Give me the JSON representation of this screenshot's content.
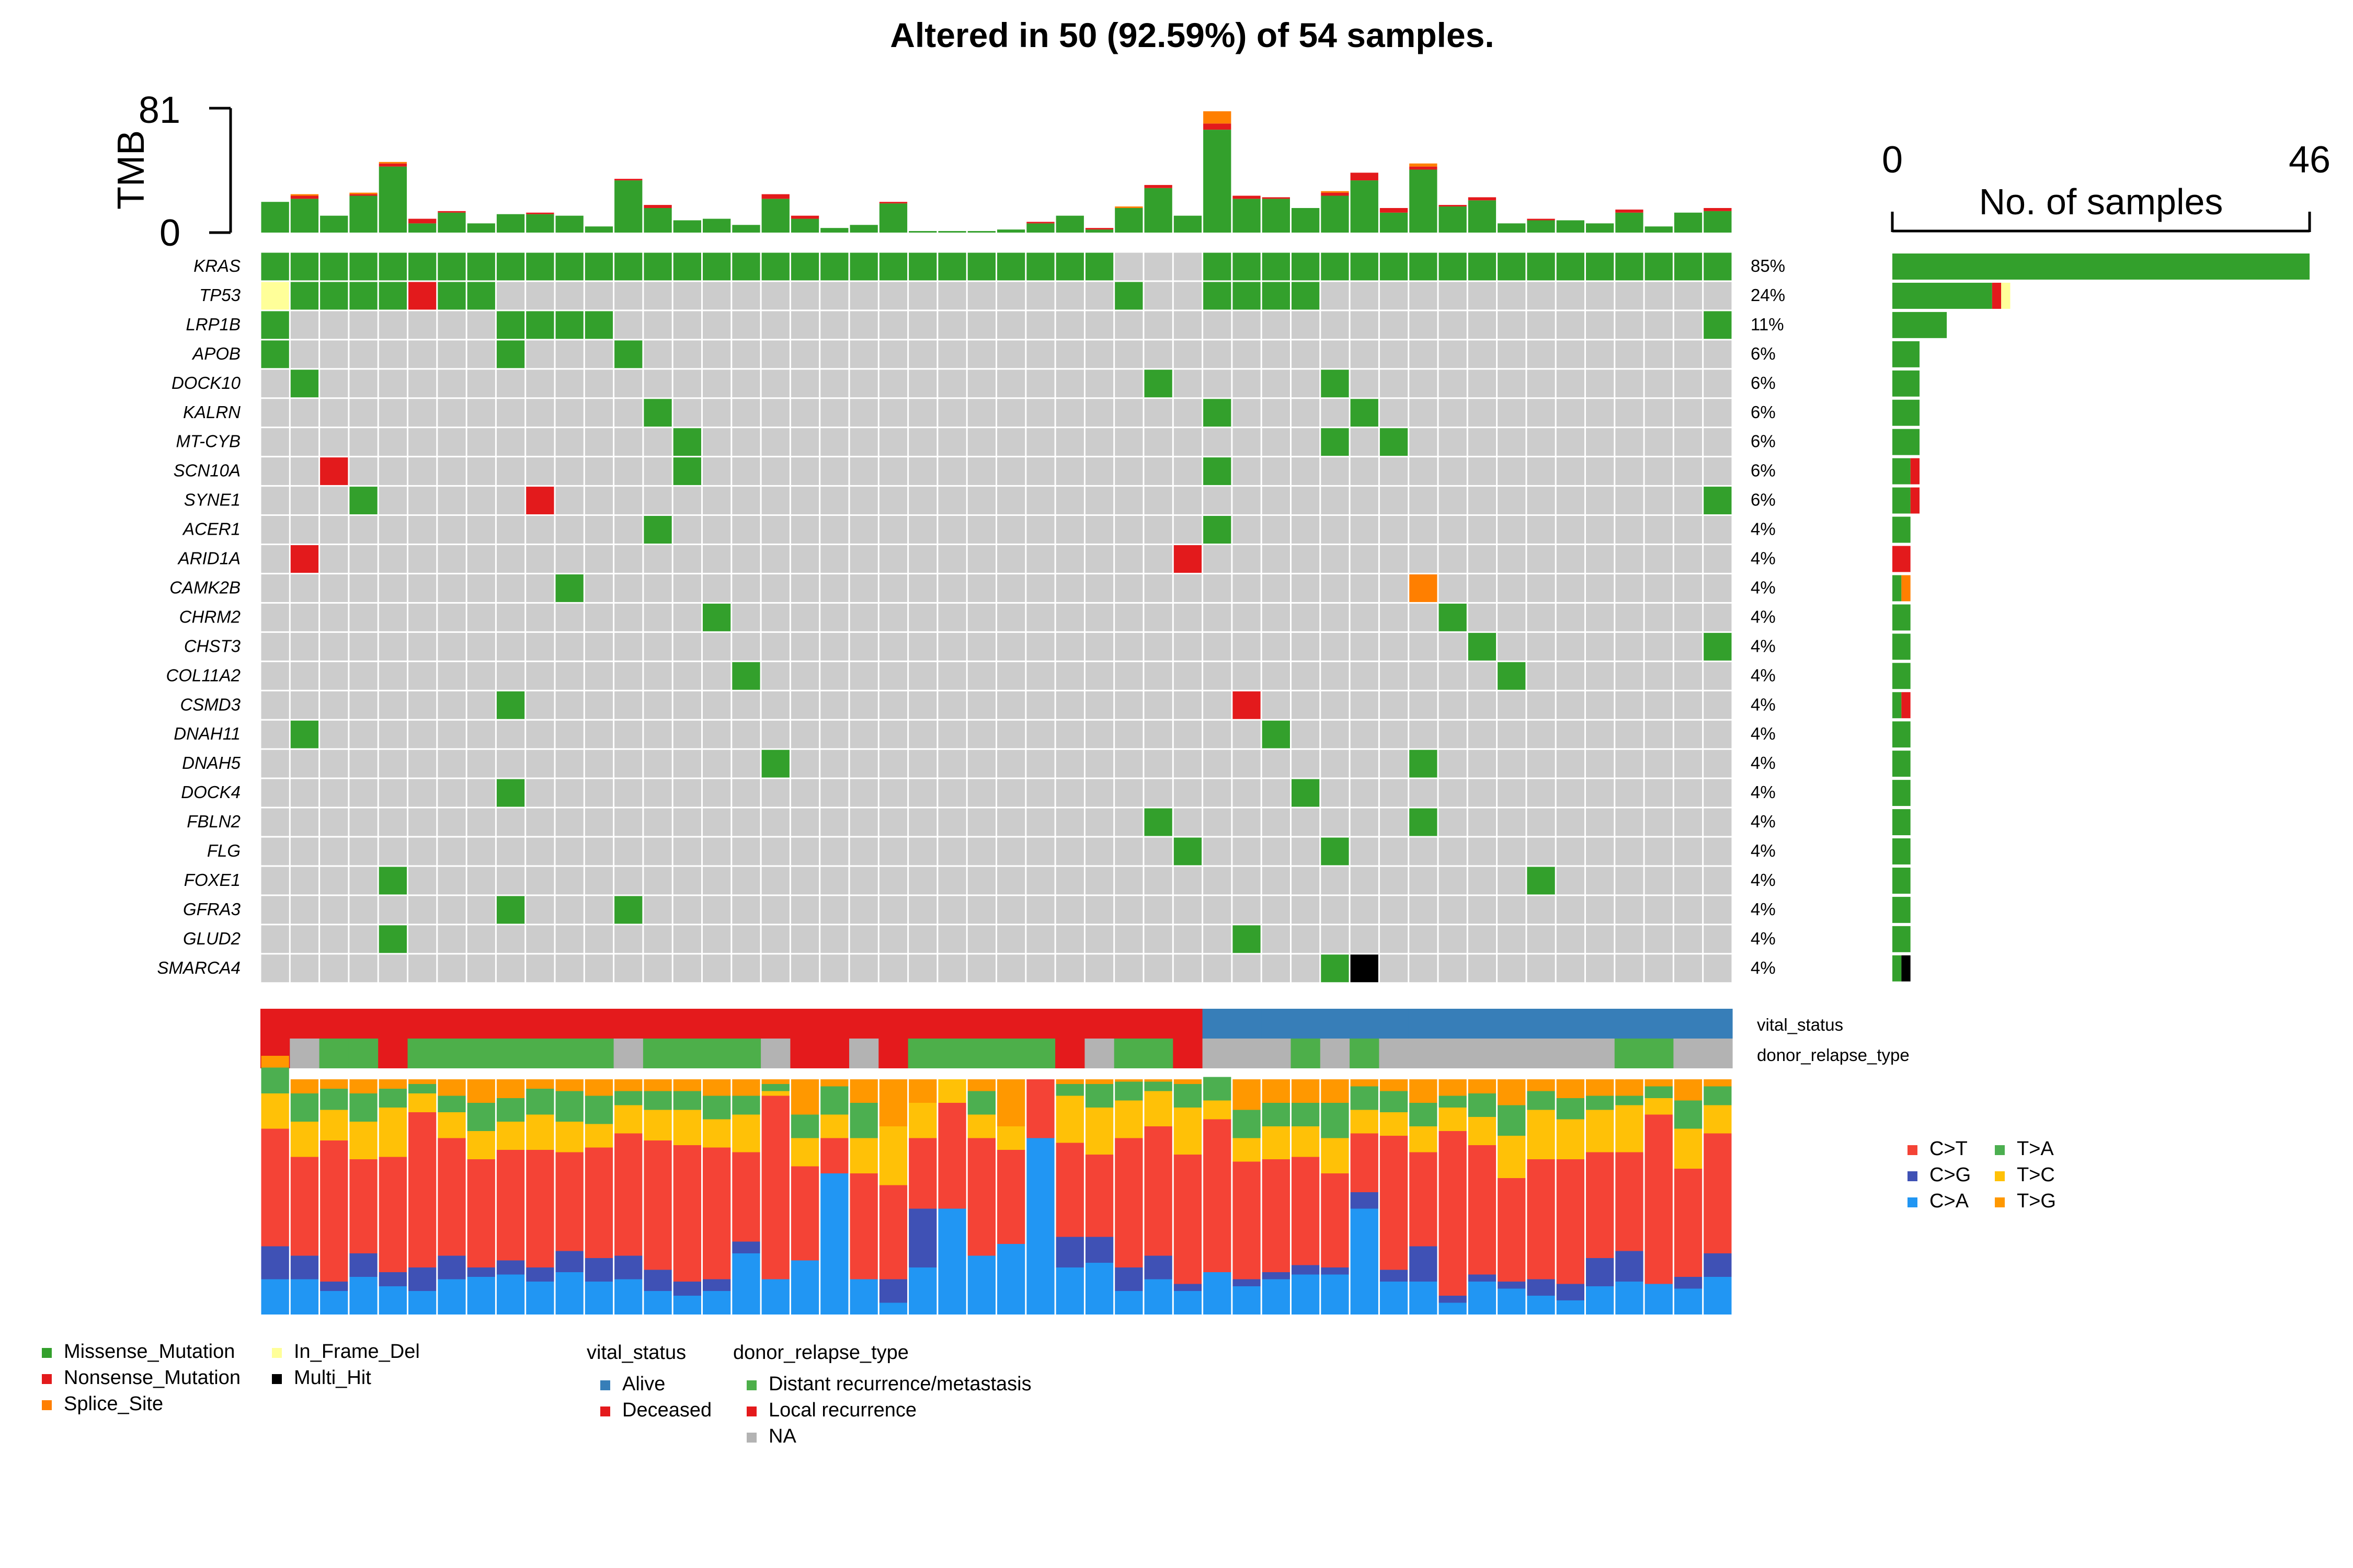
{
  "chart_data": {
    "type": "heatmap",
    "title": "Altered in 50 (92.59%) of 54 samples.",
    "n_samples": 54,
    "colors": {
      "Missense_Mutation": "#33a02c",
      "Nonsense_Mutation": "#e31a1c",
      "Splice_Site": "#ff7f00",
      "In_Frame_Del": "#ffff99",
      "Multi_Hit": "#000000",
      "none": "#cccccc",
      "Alive": "#377eb8",
      "Deceased": "#e41a1c",
      "Distant recurrence/metastasis": "#4daf4a",
      "Local recurrence": "#e41a1c",
      "NA": "#b3b3b3",
      "C>T": "#f44336",
      "C>G": "#3f51b5",
      "C>A": "#2196f3",
      "T>A": "#4caf50",
      "T>C": "#ffc107",
      "T>G": "#ff9800"
    },
    "tmb": {
      "label": "TMB",
      "max_label": "81",
      "min_label": "0",
      "max": 81,
      "values": [
        {
          "Missense_Mutation": 20
        },
        {
          "Missense_Mutation": 22,
          "Nonsense_Mutation": 2,
          "Splice_Site": 1
        },
        {
          "Missense_Mutation": 11
        },
        {
          "Missense_Mutation": 24,
          "Nonsense_Mutation": 1,
          "Splice_Site": 1
        },
        {
          "Missense_Mutation": 43,
          "Nonsense_Mutation": 2,
          "Splice_Site": 1
        },
        {
          "Missense_Mutation": 6,
          "Nonsense_Mutation": 3
        },
        {
          "Missense_Mutation": 13,
          "Nonsense_Mutation": 1
        },
        {
          "Missense_Mutation": 6
        },
        {
          "Missense_Mutation": 12
        },
        {
          "Missense_Mutation": 12,
          "Nonsense_Mutation": 1
        },
        {
          "Missense_Mutation": 11
        },
        {
          "Missense_Mutation": 4
        },
        {
          "Missense_Mutation": 34,
          "Nonsense_Mutation": 1
        },
        {
          "Missense_Mutation": 16,
          "Nonsense_Mutation": 2
        },
        {
          "Missense_Mutation": 8
        },
        {
          "Missense_Mutation": 9
        },
        {
          "Missense_Mutation": 5
        },
        {
          "Missense_Mutation": 22,
          "Nonsense_Mutation": 3
        },
        {
          "Missense_Mutation": 9,
          "Nonsense_Mutation": 2
        },
        {
          "Missense_Mutation": 3
        },
        {
          "Missense_Mutation": 5
        },
        {
          "Missense_Mutation": 19,
          "Nonsense_Mutation": 1
        },
        {
          "Missense_Mutation": 1
        },
        {
          "Missense_Mutation": 1
        },
        {
          "Missense_Mutation": 1
        },
        {
          "Missense_Mutation": 2
        },
        {
          "Missense_Mutation": 6,
          "Nonsense_Mutation": 1
        },
        {
          "Missense_Mutation": 11
        },
        {
          "Missense_Mutation": 2,
          "Nonsense_Mutation": 1
        },
        {
          "Missense_Mutation": 16,
          "Splice_Site": 1
        },
        {
          "Missense_Mutation": 29,
          "Nonsense_Mutation": 2
        },
        {
          "Missense_Mutation": 11
        },
        {
          "Missense_Mutation": 67,
          "Nonsense_Mutation": 4,
          "Splice_Site": 8
        },
        {
          "Missense_Mutation": 22,
          "Nonsense_Mutation": 2
        },
        {
          "Missense_Mutation": 22,
          "Nonsense_Mutation": 1
        },
        {
          "Missense_Mutation": 16
        },
        {
          "Missense_Mutation": 24,
          "Nonsense_Mutation": 2,
          "Splice_Site": 1
        },
        {
          "Missense_Mutation": 34,
          "Nonsense_Mutation": 5
        },
        {
          "Missense_Mutation": 13,
          "Nonsense_Mutation": 3
        },
        {
          "Missense_Mutation": 41,
          "Nonsense_Mutation": 2,
          "Splice_Site": 2
        },
        {
          "Missense_Mutation": 17,
          "Nonsense_Mutation": 1
        },
        {
          "Missense_Mutation": 21,
          "Nonsense_Mutation": 2
        },
        {
          "Missense_Mutation": 6
        },
        {
          "Missense_Mutation": 8,
          "Nonsense_Mutation": 1
        },
        {
          "Missense_Mutation": 8
        },
        {
          "Missense_Mutation": 6
        },
        {
          "Missense_Mutation": 13,
          "Nonsense_Mutation": 2
        },
        {
          "Missense_Mutation": 4
        },
        {
          "Missense_Mutation": 13
        },
        {
          "Missense_Mutation": 14,
          "Nonsense_Mutation": 2
        }
      ]
    },
    "genes": [
      {
        "name": "KRAS",
        "pct": "85%",
        "cols": [
          0,
          1,
          2,
          3,
          4,
          5,
          6,
          7,
          8,
          9,
          10,
          11,
          12,
          13,
          14,
          15,
          16,
          17,
          18,
          19,
          20,
          21,
          22,
          23,
          24,
          25,
          26,
          27,
          28,
          32,
          33,
          34,
          35,
          36,
          37,
          38,
          39,
          40,
          41,
          42,
          43,
          44,
          45,
          46,
          47,
          48,
          49
        ],
        "types": {}
      },
      {
        "name": "TP53",
        "pct": "24%",
        "cols": [
          0,
          1,
          2,
          3,
          4,
          5,
          6,
          7,
          29,
          32,
          33,
          34,
          35
        ],
        "types": {
          "0": "In_Frame_Del",
          "5": "Nonsense_Mutation"
        }
      },
      {
        "name": "LRP1B",
        "pct": "11%",
        "cols": [
          0,
          8,
          9,
          10,
          11,
          49
        ],
        "types": {}
      },
      {
        "name": "APOB",
        "pct": "6%",
        "cols": [
          0,
          8,
          12
        ],
        "types": {}
      },
      {
        "name": "DOCK10",
        "pct": "6%",
        "cols": [
          1,
          30,
          36
        ],
        "types": {}
      },
      {
        "name": "KALRN",
        "pct": "6%",
        "cols": [
          13,
          32,
          37
        ],
        "types": {}
      },
      {
        "name": "MT-CYB",
        "pct": "6%",
        "cols": [
          14,
          36,
          38
        ],
        "types": {}
      },
      {
        "name": "SCN10A",
        "pct": "6%",
        "cols": [
          2,
          14,
          32
        ],
        "types": {
          "2": "Nonsense_Mutation"
        }
      },
      {
        "name": "SYNE1",
        "pct": "6%",
        "cols": [
          3,
          9,
          49
        ],
        "types": {
          "9": "Nonsense_Mutation"
        }
      },
      {
        "name": "ACER1",
        "pct": "4%",
        "cols": [
          13,
          32
        ],
        "types": {}
      },
      {
        "name": "ARID1A",
        "pct": "4%",
        "cols": [
          1,
          31
        ],
        "types": {
          "1": "Nonsense_Mutation",
          "31": "Nonsense_Mutation"
        }
      },
      {
        "name": "CAMK2B",
        "pct": "4%",
        "cols": [
          10,
          39
        ],
        "types": {
          "39": "Splice_Site"
        }
      },
      {
        "name": "CHRM2",
        "pct": "4%",
        "cols": [
          15,
          40
        ],
        "types": {}
      },
      {
        "name": "CHST3",
        "pct": "4%",
        "cols": [
          41,
          49
        ],
        "types": {}
      },
      {
        "name": "COL11A2",
        "pct": "4%",
        "cols": [
          16,
          42
        ],
        "types": {}
      },
      {
        "name": "CSMD3",
        "pct": "4%",
        "cols": [
          8,
          33
        ],
        "types": {
          "33": "Nonsense_Mutation"
        }
      },
      {
        "name": "DNAH11",
        "pct": "4%",
        "cols": [
          1,
          34
        ],
        "types": {}
      },
      {
        "name": "DNAH5",
        "pct": "4%",
        "cols": [
          17,
          39
        ],
        "types": {}
      },
      {
        "name": "DOCK4",
        "pct": "4%",
        "cols": [
          8,
          35
        ],
        "types": {}
      },
      {
        "name": "FBLN2",
        "pct": "4%",
        "cols": [
          30,
          39
        ],
        "types": {}
      },
      {
        "name": "FLG",
        "pct": "4%",
        "cols": [
          31,
          36
        ],
        "types": {}
      },
      {
        "name": "FOXE1",
        "pct": "4%",
        "cols": [
          4,
          43
        ],
        "types": {}
      },
      {
        "name": "GFRA3",
        "pct": "4%",
        "cols": [
          8,
          12
        ],
        "types": {}
      },
      {
        "name": "GLUD2",
        "pct": "4%",
        "cols": [
          4,
          33
        ],
        "types": {}
      },
      {
        "name": "SMARCA4",
        "pct": "4%",
        "cols": [
          36,
          37
        ],
        "types": {
          "37": "Multi_Hit"
        }
      }
    ],
    "gene_bars": {
      "axis_title": "No. of samples",
      "min_label": "0",
      "max_label": "46",
      "max": 46,
      "values": [
        {
          "Missense_Mutation": 46
        },
        {
          "Missense_Mutation": 11,
          "Nonsense_Mutation": 1,
          "In_Frame_Del": 1
        },
        {
          "Missense_Mutation": 6
        },
        {
          "Missense_Mutation": 3
        },
        {
          "Missense_Mutation": 3
        },
        {
          "Missense_Mutation": 3
        },
        {
          "Missense_Mutation": 3
        },
        {
          "Missense_Mutation": 2,
          "Nonsense_Mutation": 1
        },
        {
          "Missense_Mutation": 2,
          "Nonsense_Mutation": 1
        },
        {
          "Missense_Mutation": 2
        },
        {
          "Nonsense_Mutation": 2
        },
        {
          "Missense_Mutation": 1,
          "Splice_Site": 1
        },
        {
          "Missense_Mutation": 2
        },
        {
          "Missense_Mutation": 2
        },
        {
          "Missense_Mutation": 2
        },
        {
          "Missense_Mutation": 1,
          "Nonsense_Mutation": 1
        },
        {
          "Missense_Mutation": 2
        },
        {
          "Missense_Mutation": 2
        },
        {
          "Missense_Mutation": 2
        },
        {
          "Missense_Mutation": 2
        },
        {
          "Missense_Mutation": 2
        },
        {
          "Missense_Mutation": 2
        },
        {
          "Missense_Mutation": 2
        },
        {
          "Missense_Mutation": 2
        },
        {
          "Missense_Mutation": 1,
          "Multi_Hit": 1
        }
      ]
    },
    "annotations": {
      "vital_status": {
        "label": "vital_status",
        "values": [
          "Deceased",
          "Deceased",
          "Deceased",
          "Deceased",
          "Deceased",
          "Deceased",
          "Deceased",
          "Deceased",
          "Deceased",
          "Deceased",
          "Deceased",
          "Deceased",
          "Deceased",
          "Deceased",
          "Deceased",
          "Deceased",
          "Deceased",
          "Deceased",
          "Deceased",
          "Deceased",
          "Deceased",
          "Deceased",
          "Deceased",
          "Deceased",
          "Deceased",
          "Deceased",
          "Deceased",
          "Deceased",
          "Deceased",
          "Deceased",
          "Deceased",
          "Deceased",
          "Alive",
          "Alive",
          "Alive",
          "Alive",
          "Alive",
          "Alive",
          "Alive",
          "Alive",
          "Alive",
          "Alive",
          "Alive",
          "Alive",
          "Alive",
          "Alive",
          "Alive",
          "Alive",
          "Alive",
          "Alive"
        ]
      },
      "donor_relapse_type": {
        "label": "donor_relapse_type",
        "values": [
          "Local recurrence",
          "NA",
          "Distant recurrence/metastasis",
          "Distant recurrence/metastasis",
          "Local recurrence",
          "Distant recurrence/metastasis",
          "Distant recurrence/metastasis",
          "Distant recurrence/metastasis",
          "Distant recurrence/metastasis",
          "Distant recurrence/metastasis",
          "Distant recurrence/metastasis",
          "Distant recurrence/metastasis",
          "NA",
          "Distant recurrence/metastasis",
          "Distant recurrence/metastasis",
          "Distant recurrence/metastasis",
          "Distant recurrence/metastasis",
          "NA",
          "Local recurrence",
          "Local recurrence",
          "NA",
          "Local recurrence",
          "Distant recurrence/metastasis",
          "Distant recurrence/metastasis",
          "Distant recurrence/metastasis",
          "Distant recurrence/metastasis",
          "Distant recurrence/metastasis",
          "Local recurrence",
          "NA",
          "Distant recurrence/metastasis",
          "Distant recurrence/metastasis",
          "Local recurrence",
          "NA",
          "NA",
          "NA",
          "Distant recurrence/metastasis",
          "NA",
          "Distant recurrence/metastasis",
          "NA",
          "NA",
          "NA",
          "NA",
          "NA",
          "NA",
          "NA",
          "NA",
          "Distant recurrence/metastasis",
          "Distant recurrence/metastasis",
          "NA",
          "NA"
        ]
      }
    },
    "titv": {
      "order": [
        "C>A",
        "C>G",
        "C>T",
        "T>C",
        "T>A",
        "T>G"
      ],
      "values": [
        [
          15,
          14,
          50,
          15,
          11,
          5
        ],
        [
          15,
          10,
          42,
          15,
          12,
          6
        ],
        [
          10,
          4,
          60,
          13,
          9,
          4
        ],
        [
          16,
          10,
          40,
          16,
          12,
          6
        ],
        [
          12,
          6,
          49,
          21,
          8,
          4
        ],
        [
          10,
          10,
          66,
          8,
          4,
          2
        ],
        [
          15,
          10,
          50,
          11,
          7,
          7
        ],
        [
          16,
          4,
          46,
          12,
          12,
          10
        ],
        [
          17,
          6,
          47,
          12,
          10,
          8
        ],
        [
          14,
          6,
          50,
          15,
          11,
          4
        ],
        [
          18,
          9,
          42,
          13,
          13,
          5
        ],
        [
          14,
          10,
          47,
          10,
          12,
          7
        ],
        [
          15,
          10,
          52,
          12,
          6,
          5
        ],
        [
          10,
          9,
          55,
          13,
          8,
          5
        ],
        [
          8,
          6,
          58,
          15,
          8,
          5
        ],
        [
          10,
          5,
          56,
          12,
          10,
          7
        ],
        [
          26,
          5,
          38,
          16,
          8,
          7
        ],
        [
          15,
          0,
          78,
          2,
          3,
          2
        ],
        [
          23,
          0,
          40,
          12,
          10,
          15
        ],
        [
          60,
          0,
          15,
          10,
          12,
          3
        ],
        [
          15,
          0,
          45,
          15,
          15,
          10
        ],
        [
          5,
          10,
          40,
          25,
          0,
          20
        ],
        [
          20,
          25,
          30,
          15,
          0,
          10
        ],
        [
          45,
          0,
          45,
          10,
          0,
          0
        ],
        [
          25,
          0,
          50,
          10,
          10,
          5
        ],
        [
          30,
          0,
          40,
          10,
          0,
          20
        ],
        [
          75,
          0,
          25,
          0,
          0,
          0
        ],
        [
          20,
          13,
          40,
          20,
          5,
          2
        ],
        [
          22,
          11,
          35,
          20,
          10,
          2
        ],
        [
          10,
          10,
          55,
          16,
          8,
          1
        ],
        [
          15,
          10,
          55,
          15,
          4,
          1
        ],
        [
          10,
          3,
          55,
          20,
          10,
          2
        ],
        [
          18,
          0,
          65,
          8,
          10,
          0
        ],
        [
          12,
          3,
          50,
          10,
          12,
          13
        ],
        [
          15,
          3,
          48,
          14,
          10,
          10
        ],
        [
          17,
          4,
          46,
          13,
          10,
          10
        ],
        [
          17,
          3,
          40,
          15,
          15,
          10
        ],
        [
          45,
          7,
          25,
          10,
          10,
          3
        ],
        [
          14,
          5,
          57,
          10,
          9,
          5
        ],
        [
          14,
          15,
          40,
          11,
          10,
          10
        ],
        [
          5,
          3,
          70,
          10,
          5,
          7
        ],
        [
          14,
          3,
          55,
          12,
          10,
          6
        ],
        [
          11,
          3,
          44,
          18,
          13,
          11
        ],
        [
          8,
          7,
          51,
          21,
          8,
          5
        ],
        [
          6,
          7,
          53,
          17,
          9,
          8
        ],
        [
          12,
          12,
          45,
          18,
          6,
          7
        ],
        [
          14,
          13,
          42,
          20,
          4,
          7
        ],
        [
          13,
          0,
          72,
          7,
          5,
          3
        ],
        [
          11,
          5,
          46,
          17,
          12,
          9
        ],
        [
          16,
          10,
          51,
          12,
          8,
          3
        ]
      ]
    },
    "legend_mut": [
      "Missense_Mutation",
      "In_Frame_Del",
      "Nonsense_Mutation",
      "Multi_Hit",
      "Splice_Site"
    ],
    "legend_vital": {
      "title": "vital_status",
      "items": [
        "Alive",
        "Deceased"
      ]
    },
    "legend_relapse": {
      "title": "donor_relapse_type",
      "items": [
        "Distant recurrence/metastasis",
        "Local recurrence",
        "NA"
      ]
    },
    "legend_titv": [
      "C>T",
      "T>A",
      "C>G",
      "T>C",
      "C>A",
      "T>G"
    ]
  }
}
